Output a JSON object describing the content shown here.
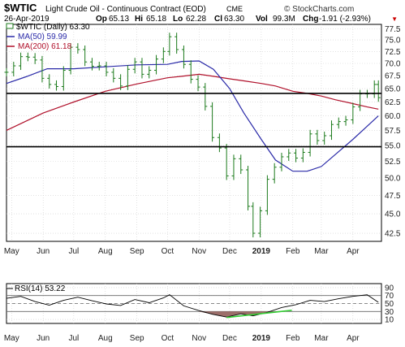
{
  "header": {
    "symbol": "$WTIC",
    "name": "Light Crude Oil - Continuous Contract (EOD)",
    "exchange": "CME",
    "date": "26-Apr-2019",
    "open_label": "Op",
    "open": "65.13",
    "high_label": "Hi",
    "high": "65.18",
    "low_label": "Lo",
    "low": "62.28",
    "close_label": "Cl",
    "close": "63.30",
    "volume_label": "Vol",
    "volume": "99.3M",
    "change_label": "Chg",
    "change": "-1.91 (-2.93%)",
    "change_arrow": "▼",
    "watermark": "© StockCharts.com"
  },
  "legend": {
    "price": "$WTIC (Daily) 63.30",
    "ma50": "MA(50) 59.99",
    "ma200": "MA(200) 61.18",
    "rsi": "RSI(14) 53.22"
  },
  "colors": {
    "bar": "#1b7a1b",
    "ma50": "#2a2aa8",
    "ma200": "#b0102a",
    "hline": "#000000",
    "rsi": "#000000",
    "rsi_fill": "#9c6e6a",
    "rsi_trend": "#33cc33",
    "grid": "#cfcfcf",
    "change_red": "#cc0000"
  },
  "chart_data": [
    {
      "type": "line",
      "title": "$WTIC Light Crude Oil - Continuous Contract (EOD) CME",
      "style": "ohlc bars",
      "scale": "log",
      "ylim": [
        41.5,
        78.5
      ],
      "yticks": [
        "77.5",
        "75.0",
        "72.5",
        "70.0",
        "67.5",
        "65.0",
        "62.5",
        "60.0",
        "57.5",
        "55.0",
        "52.5",
        "50.0",
        "47.5",
        "45.0",
        "42.5"
      ],
      "x_labels": [
        "May",
        "Jun",
        "Jul",
        "Aug",
        "Sep",
        "Oct",
        "Nov",
        "Dec",
        "2019",
        "Feb",
        "Mar",
        "Apr"
      ],
      "grid": true,
      "legend_position": "top-left",
      "series": [
        {
          "name": "$WTIC (Daily) 63.30",
          "kind": "close",
          "x": [
            "2018-04-26",
            "2018-05-03",
            "2018-05-10",
            "2018-05-17",
            "2018-05-24",
            "2018-05-31",
            "2018-06-07",
            "2018-06-14",
            "2018-06-21",
            "2018-06-28",
            "2018-07-05",
            "2018-07-12",
            "2018-07-19",
            "2018-07-26",
            "2018-08-02",
            "2018-08-09",
            "2018-08-16",
            "2018-08-23",
            "2018-08-30",
            "2018-09-06",
            "2018-09-13",
            "2018-09-20",
            "2018-09-27",
            "2018-10-03",
            "2018-10-10",
            "2018-10-17",
            "2018-10-24",
            "2018-10-31",
            "2018-11-07",
            "2018-11-14",
            "2018-11-21",
            "2018-11-28",
            "2018-12-05",
            "2018-12-12",
            "2018-12-19",
            "2018-12-24",
            "2018-12-31",
            "2019-01-07",
            "2019-01-14",
            "2019-01-21",
            "2019-01-28",
            "2019-02-04",
            "2019-02-11",
            "2019-02-18",
            "2019-02-25",
            "2019-03-04",
            "2019-03-11",
            "2019-03-18",
            "2019-03-25",
            "2019-04-01",
            "2019-04-08",
            "2019-04-15",
            "2019-04-22",
            "2019-04-26"
          ],
          "values": [
            68.2,
            69.5,
            71.4,
            71.3,
            70.7,
            67.0,
            65.8,
            65.4,
            68.6,
            73.4,
            72.9,
            70.3,
            69.4,
            69.5,
            68.2,
            67.0,
            65.5,
            68.8,
            70.3,
            67.8,
            68.6,
            70.9,
            72.5,
            75.7,
            72.9,
            69.8,
            66.8,
            65.3,
            61.7,
            56.3,
            54.6,
            50.3,
            52.9,
            51.2,
            46.0,
            42.5,
            45.4,
            49.8,
            51.6,
            53.2,
            53.8,
            53.0,
            53.9,
            56.9,
            55.8,
            56.6,
            58.5,
            59.0,
            59.3,
            61.6,
            64.0,
            64.0,
            65.8,
            63.3
          ]
        },
        {
          "name": "MA(50) 59.99",
          "x": [
            "2018-04-26",
            "2018-05-15",
            "2018-06-05",
            "2018-07-01",
            "2018-08-01",
            "2018-09-01",
            "2018-10-01",
            "2018-10-15",
            "2018-11-01",
            "2018-11-15",
            "2018-12-01",
            "2018-12-15",
            "2019-01-01",
            "2019-01-15",
            "2019-02-01",
            "2019-02-15",
            "2019-03-01",
            "2019-03-15",
            "2019-04-01",
            "2019-04-15",
            "2019-04-26"
          ],
          "values": [
            66.0,
            67.3,
            68.9,
            68.9,
            69.3,
            69.7,
            69.8,
            70.4,
            70.5,
            68.8,
            65.0,
            60.5,
            56.0,
            52.7,
            51.0,
            51.0,
            51.7,
            53.6,
            56.0,
            58.2,
            60.0
          ]
        },
        {
          "name": "MA(200) 61.18",
          "x": [
            "2018-04-26",
            "2018-06-01",
            "2018-07-01",
            "2018-08-01",
            "2018-09-01",
            "2018-10-01",
            "2018-10-15",
            "2018-11-01",
            "2018-11-15",
            "2018-12-01",
            "2018-12-15",
            "2019-01-01",
            "2019-01-15",
            "2019-02-01",
            "2019-02-15",
            "2019-03-01",
            "2019-03-15",
            "2019-04-01",
            "2019-04-15",
            "2019-04-26"
          ],
          "values": [
            57.5,
            60.5,
            62.5,
            64.5,
            65.9,
            67.1,
            67.4,
            67.8,
            67.4,
            66.9,
            66.5,
            66.0,
            65.5,
            64.5,
            64.1,
            63.6,
            62.9,
            62.2,
            61.6,
            61.2
          ]
        },
        {
          "name": "horizontal line",
          "kind": "hline",
          "values": [
            64.1
          ]
        },
        {
          "name": "horizontal line",
          "kind": "hline",
          "values": [
            54.8
          ]
        }
      ]
    },
    {
      "type": "line",
      "title": "RSI(14) 53.22",
      "ylim": [
        0,
        100
      ],
      "yticks": [
        "90",
        "70",
        "50",
        "30",
        "10"
      ],
      "x_labels": [
        "May",
        "Jun",
        "Jul",
        "Aug",
        "Sep",
        "Oct",
        "Nov",
        "Dec",
        "2019",
        "Feb",
        "Mar",
        "Apr"
      ],
      "grid": true,
      "reference_lines": [
        70,
        50,
        30
      ],
      "series": [
        {
          "name": "RSI(14) 53.22",
          "x": [
            "2018-04-26",
            "2018-05-10",
            "2018-05-24",
            "2018-06-07",
            "2018-06-21",
            "2018-07-05",
            "2018-07-19",
            "2018-08-02",
            "2018-08-16",
            "2018-08-30",
            "2018-09-13",
            "2018-09-27",
            "2018-10-03",
            "2018-10-17",
            "2018-10-31",
            "2018-11-14",
            "2018-11-28",
            "2018-12-12",
            "2018-12-24",
            "2019-01-07",
            "2019-01-21",
            "2019-02-04",
            "2019-02-18",
            "2019-03-04",
            "2019-03-18",
            "2019-04-01",
            "2019-04-15",
            "2019-04-26"
          ],
          "values": [
            63,
            68,
            55,
            46,
            58,
            66,
            57,
            49,
            45,
            60,
            52,
            64,
            72,
            44,
            33,
            23,
            16,
            24,
            19,
            28,
            40,
            47,
            58,
            55,
            62,
            68,
            72,
            53
          ]
        },
        {
          "name": "trendline",
          "kind": "trendline",
          "x": [
            "2018-11-28",
            "2019-01-31"
          ],
          "values": [
            15,
            33
          ]
        }
      ]
    }
  ]
}
